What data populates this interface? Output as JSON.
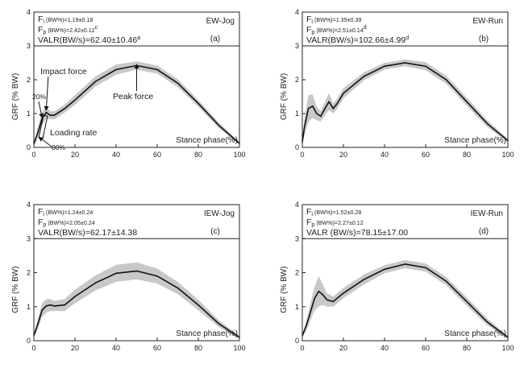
{
  "chart_data": [
    {
      "type": "line",
      "panel": "(a)",
      "condition": "EW-Jog",
      "stats": {
        "fi": "1.19±0.18",
        "fp": "2.42±0.12",
        "fp_sup": "c",
        "valr": "62.40±10.46",
        "valr_sup": "a"
      },
      "annotations": {
        "impact": "Impact force",
        "peak": "Peak force",
        "loading": "Loading rate",
        "p20": "20%",
        "p80": "80%"
      },
      "x": [
        0,
        2,
        4,
        6,
        8,
        10,
        15,
        20,
        30,
        40,
        50,
        60,
        70,
        80,
        90,
        100
      ],
      "mean": [
        0.1,
        0.45,
        0.85,
        1.03,
        0.95,
        0.95,
        1.15,
        1.4,
        1.95,
        2.3,
        2.42,
        2.3,
        1.9,
        1.3,
        0.65,
        0.12
      ],
      "sd": [
        0.05,
        0.15,
        0.2,
        0.18,
        0.12,
        0.12,
        0.12,
        0.14,
        0.15,
        0.15,
        0.12,
        0.12,
        0.12,
        0.1,
        0.08,
        0.04
      ]
    },
    {
      "type": "line",
      "panel": "(b)",
      "condition": "EW-Run",
      "stats": {
        "fi": "1.35±0.39",
        "fp": "2.51±0.14",
        "fp_sup": "d",
        "valr": "102.66±4.99",
        "valr_sup": "d"
      },
      "x": [
        0,
        1,
        3,
        5,
        7,
        9,
        11,
        13,
        15,
        17,
        20,
        30,
        40,
        50,
        60,
        70,
        80,
        90,
        100
      ],
      "mean": [
        0.15,
        0.6,
        1.15,
        1.22,
        1.0,
        0.92,
        1.15,
        1.35,
        1.15,
        1.3,
        1.6,
        2.1,
        2.4,
        2.5,
        2.4,
        2.0,
        1.35,
        0.7,
        0.2
      ],
      "sd": [
        0.05,
        0.25,
        0.4,
        0.35,
        0.2,
        0.15,
        0.2,
        0.25,
        0.15,
        0.15,
        0.15,
        0.12,
        0.1,
        0.1,
        0.12,
        0.12,
        0.12,
        0.1,
        0.05
      ]
    },
    {
      "type": "line",
      "panel": "(c)",
      "condition": "IEW-Jog",
      "stats": {
        "fi": "1.24±0.24",
        "fp": "2.05±0.24",
        "fp_sup": "",
        "valr": "62.17±14.38",
        "valr_sup": ""
      },
      "x": [
        0,
        2,
        4,
        6,
        8,
        10,
        15,
        20,
        30,
        40,
        50,
        60,
        70,
        80,
        90,
        100
      ],
      "mean": [
        0.15,
        0.5,
        0.9,
        1.02,
        1.05,
        1.02,
        1.05,
        1.3,
        1.7,
        1.98,
        2.05,
        1.9,
        1.55,
        1.05,
        0.5,
        0.1
      ],
      "sd": [
        0.05,
        0.15,
        0.2,
        0.2,
        0.18,
        0.15,
        0.18,
        0.2,
        0.22,
        0.25,
        0.25,
        0.22,
        0.18,
        0.15,
        0.1,
        0.04
      ]
    },
    {
      "type": "line",
      "panel": "(d)",
      "condition": "IEW-Run",
      "stats": {
        "fi": "1.52±0.28",
        "fp": "2.27±0.12",
        "fp_sup": "",
        "valr": "78.15±17.00",
        "valr_sup": ""
      },
      "x": [
        0,
        2,
        4,
        6,
        8,
        10,
        12,
        15,
        20,
        30,
        40,
        50,
        60,
        70,
        80,
        90,
        100
      ],
      "mean": [
        0.15,
        0.45,
        0.85,
        1.25,
        1.45,
        1.35,
        1.2,
        1.15,
        1.4,
        1.8,
        2.1,
        2.25,
        2.15,
        1.75,
        1.15,
        0.55,
        0.1
      ],
      "sd": [
        0.05,
        0.15,
        0.25,
        0.35,
        0.45,
        0.3,
        0.2,
        0.15,
        0.15,
        0.15,
        0.12,
        0.12,
        0.12,
        0.12,
        0.12,
        0.1,
        0.04
      ]
    }
  ],
  "axis": {
    "xlabel": "Stance phase(%)",
    "ylabel": "GRF (% BW)",
    "xlim": [
      0,
      100
    ],
    "ylim": [
      0,
      4
    ],
    "x_ticks": [
      "0",
      "20",
      "40",
      "60",
      "80",
      "100"
    ],
    "y_ticks": [
      "0",
      "1",
      "2",
      "3",
      "4"
    ]
  },
  "labels": {
    "fi_sym": "F",
    "fi_sub": "i",
    "fp_sym": "F",
    "fp_sub": "p",
    "fi_unit": " (BW%)=",
    "fp_unit": " (BW%)=",
    "valr_unit_ab": "VALR(BW/s)=",
    "valr_unit_c": "VALR(BW/s)=",
    "valr_unit_d": "VALR (BW/s)="
  },
  "colors": {
    "band": "#c8c8c8",
    "line": "#111111",
    "axis": "#222222"
  }
}
